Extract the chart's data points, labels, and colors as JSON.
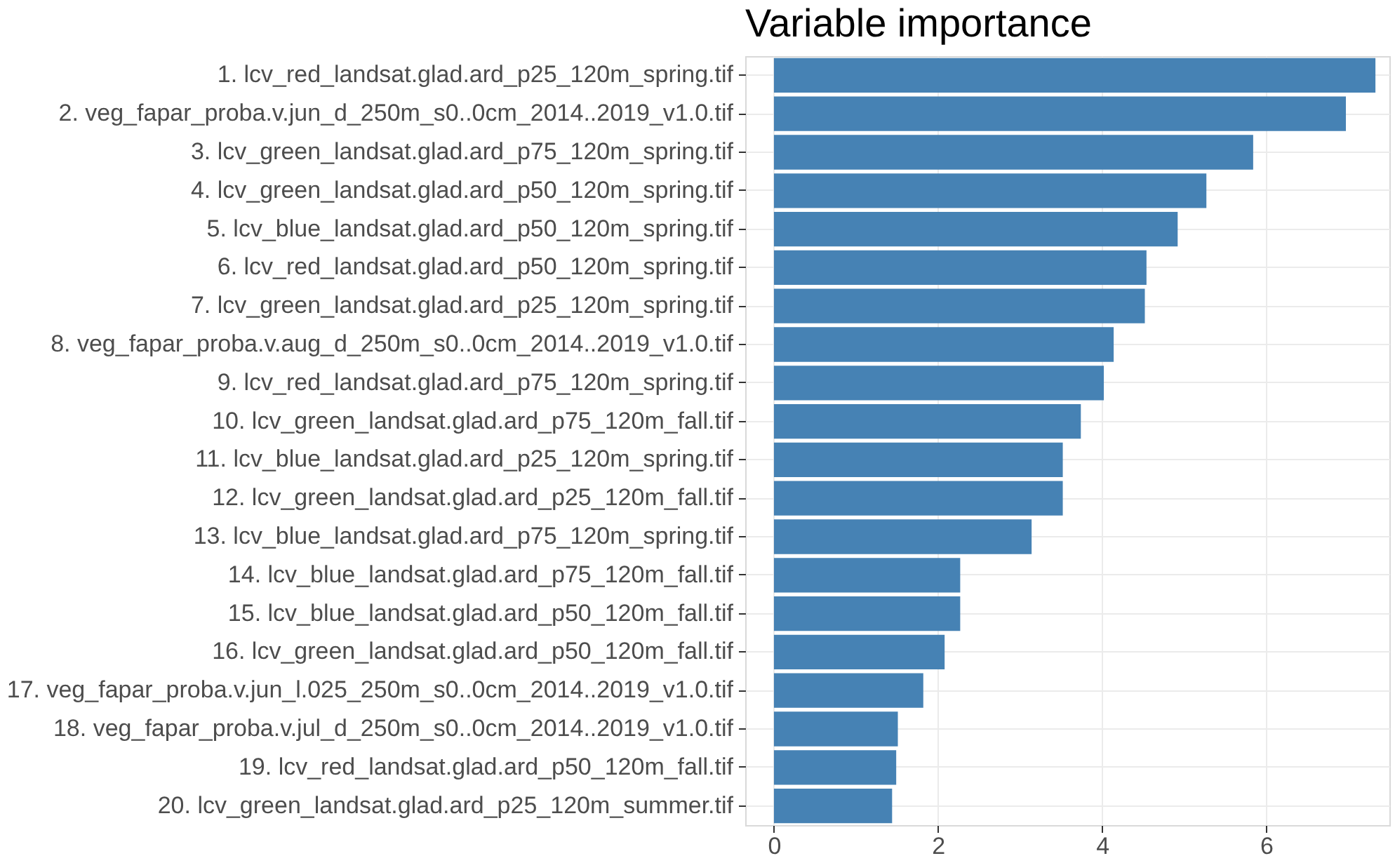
{
  "chart_data": {
    "type": "bar",
    "orientation": "horizontal",
    "title": "Variable importance",
    "categories": [
      "1. lcv_red_landsat.glad.ard_p25_120m_spring.tif",
      "2. veg_fapar_proba.v.jun_d_250m_s0..0cm_2014..2019_v1.0.tif",
      "3. lcv_green_landsat.glad.ard_p75_120m_spring.tif",
      "4. lcv_green_landsat.glad.ard_p50_120m_spring.tif",
      "5. lcv_blue_landsat.glad.ard_p50_120m_spring.tif",
      "6. lcv_red_landsat.glad.ard_p50_120m_spring.tif",
      "7. lcv_green_landsat.glad.ard_p25_120m_spring.tif",
      "8. veg_fapar_proba.v.aug_d_250m_s0..0cm_2014..2019_v1.0.tif",
      "9. lcv_red_landsat.glad.ard_p75_120m_spring.tif",
      "10. lcv_green_landsat.glad.ard_p75_120m_fall.tif",
      "11. lcv_blue_landsat.glad.ard_p25_120m_spring.tif",
      "12. lcv_green_landsat.glad.ard_p25_120m_fall.tif",
      "13. lcv_blue_landsat.glad.ard_p75_120m_spring.tif",
      "14. lcv_blue_landsat.glad.ard_p75_120m_fall.tif",
      "15. lcv_blue_landsat.glad.ard_p50_120m_fall.tif",
      "16. lcv_green_landsat.glad.ard_p50_120m_fall.tif",
      "17. veg_fapar_proba.v.jun_l.025_250m_s0..0cm_2014..2019_v1.0.tif",
      "18. veg_fapar_proba.v.jul_d_250m_s0..0cm_2014..2019_v1.0.tif",
      "19. lcv_red_landsat.glad.ard_p50_120m_fall.tif",
      "20. lcv_green_landsat.glad.ard_p25_120m_summer.tif"
    ],
    "values": [
      7.33,
      6.97,
      5.84,
      5.27,
      4.92,
      4.54,
      4.52,
      4.14,
      4.02,
      3.74,
      3.52,
      3.52,
      3.14,
      2.27,
      2.27,
      2.08,
      1.82,
      1.51,
      1.49,
      1.44
    ],
    "color": "#4682b4",
    "xlim": [
      -0.35,
      7.5
    ],
    "xticks": [
      0,
      2,
      4,
      6
    ],
    "grid": true
  }
}
